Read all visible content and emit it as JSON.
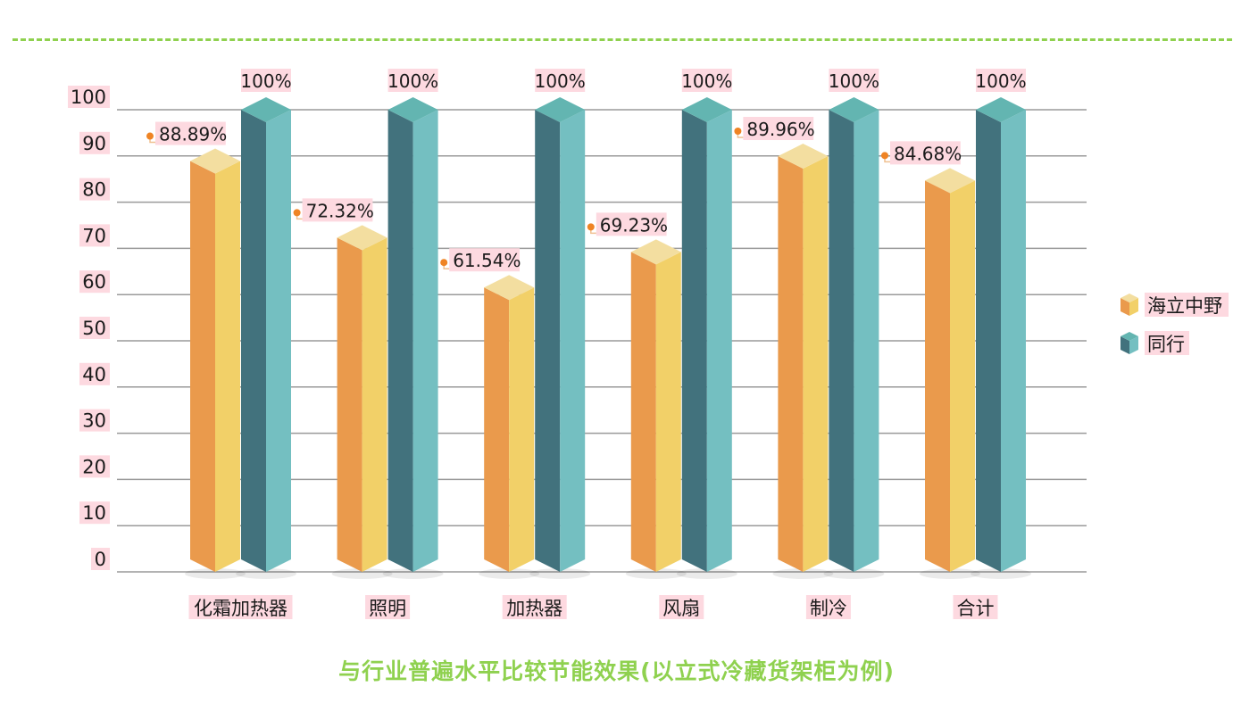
{
  "header": {
    "title": "与行业普遍水平比较节能效果(以立式冷藏货架柜为例)"
  },
  "colors": {
    "a_left": "#ea9a4c",
    "a_right": "#f2d068",
    "a_top": "#f3dea0",
    "b_left": "#42727d",
    "b_right": "#74bfc1",
    "b_top": "#63b5b1",
    "grid": "#9a9a9a",
    "label_bg": "#fdd9e0",
    "marker": "#ef8424",
    "title": "#8fd14f"
  },
  "chart_data": {
    "type": "bar",
    "categories": [
      "化霜加热器",
      "照明",
      "加热器",
      "风扇",
      "制冷",
      "合计"
    ],
    "series": [
      {
        "name": "海立中野",
        "values": [
          88.89,
          72.32,
          61.54,
          69.23,
          89.96,
          84.68
        ],
        "labels": [
          "88.89%",
          "72.32%",
          "61.54%",
          "69.23%",
          "89.96%",
          "84.68%"
        ]
      },
      {
        "name": "同行",
        "values": [
          100,
          100,
          100,
          100,
          100,
          100
        ],
        "labels": [
          "100%",
          "100%",
          "100%",
          "100%",
          "100%",
          "100%"
        ]
      }
    ],
    "ylim": [
      0,
      100
    ],
    "yticks": [
      "0",
      "10",
      "20",
      "30",
      "40",
      "50",
      "60",
      "70",
      "80",
      "90",
      "100"
    ],
    "grid": true,
    "legend": "right",
    "title": "与行业普遍水平比较节能效果(以立式冷藏货架柜为例)",
    "xlabel": "",
    "ylabel": ""
  }
}
